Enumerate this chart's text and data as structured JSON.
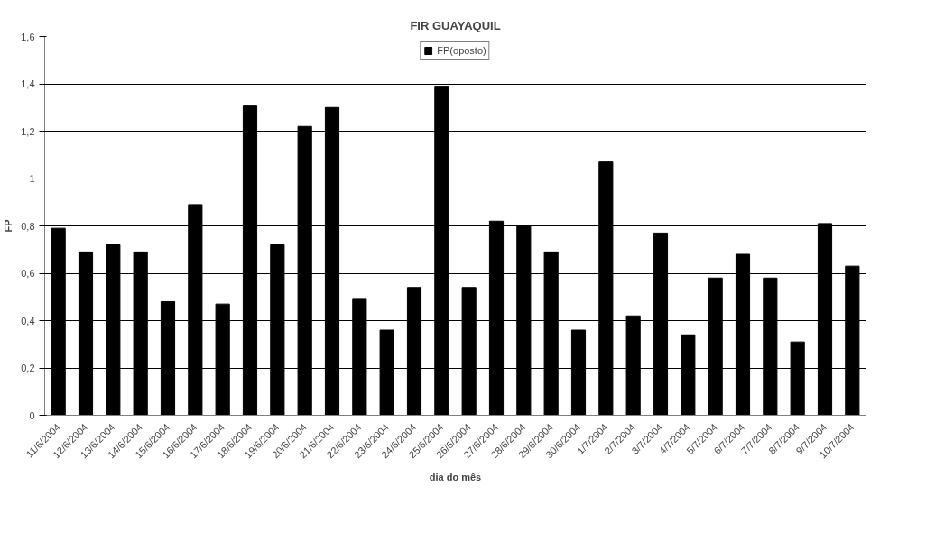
{
  "chart_data": {
    "type": "bar",
    "title": "FIR GUAYAQUIL",
    "xlabel": "dia do mês",
    "ylabel": "FP",
    "categories": [
      "11/6/2004",
      "12/6/2004",
      "13/6/2004",
      "14/6/2004",
      "15/6/2004",
      "16/6/2004",
      "17/6/2004",
      "18/6/2004",
      "19/6/2004",
      "20/6/2004",
      "21/6/2004",
      "22/6/2004",
      "23/6/2004",
      "24/6/2004",
      "25/6/2004",
      "26/6/2004",
      "27/6/2004",
      "28/6/2004",
      "29/6/2004",
      "30/6/2004",
      "1/7/2004",
      "2/7/2004",
      "3/7/2004",
      "4/7/2004",
      "5/7/2004",
      "6/7/2004",
      "7/7/2004",
      "8/7/2004",
      "9/7/2004",
      "10/7/2004"
    ],
    "series": [
      {
        "name": "FP(oposto)",
        "color": "#000000",
        "values": [
          0.79,
          0.69,
          0.72,
          0.69,
          0.48,
          0.89,
          0.47,
          1.31,
          0.72,
          1.22,
          1.3,
          0.49,
          0.36,
          0.54,
          1.39,
          0.54,
          0.82,
          0.8,
          0.69,
          0.36,
          1.07,
          0.42,
          0.77,
          0.34,
          0.58,
          0.68,
          0.58,
          0.31,
          0.81,
          0.63
        ]
      }
    ],
    "ylim": [
      0,
      1.6
    ],
    "yticks": [
      0,
      {
        "value": 0.2,
        "label": "0,2"
      },
      {
        "value": 0.4,
        "label": "0,4"
      },
      {
        "value": 0.6,
        "label": "0,6"
      },
      {
        "value": 0.8,
        "label": "0,8"
      },
      1,
      {
        "value": 1.2,
        "label": "1,2"
      },
      {
        "value": 1.4,
        "label": "1,4"
      },
      {
        "value": 1.6,
        "label": "1,6"
      }
    ],
    "grid": "y",
    "legend": "top"
  }
}
